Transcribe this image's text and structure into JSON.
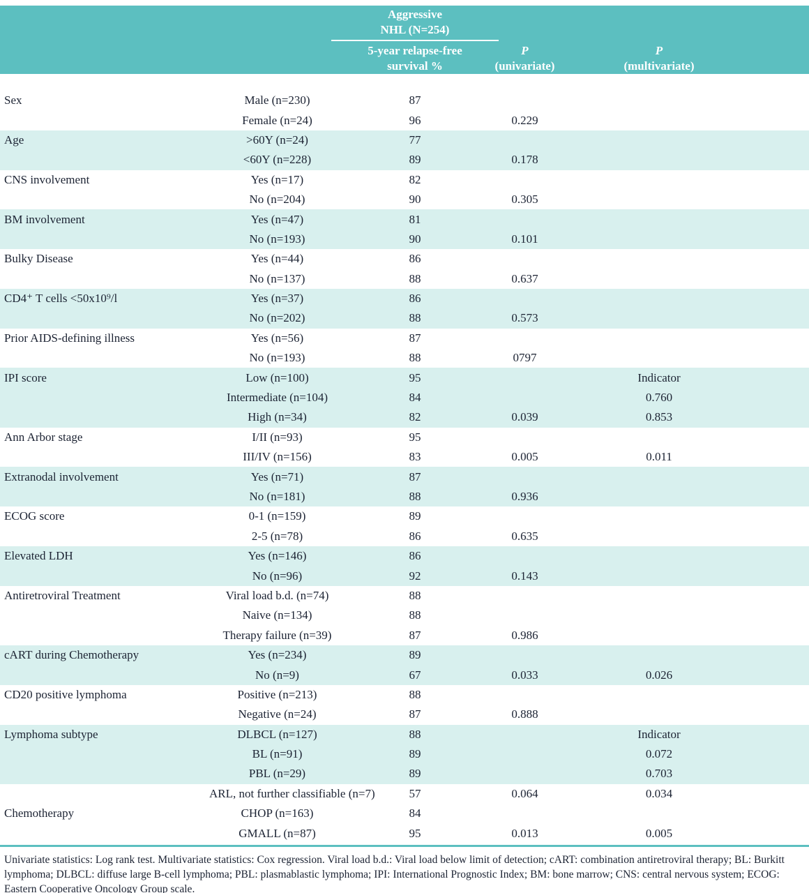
{
  "colors": {
    "header_teal": "#5cbfc0",
    "band_teal": "#d8f0ee",
    "text": "#1c2333"
  },
  "header": {
    "group_line1": "Aggressive",
    "group_line2": "NHL (N=254)",
    "survival_line1": "5-year relapse-free",
    "survival_line2": "survival %",
    "p_uni_line1": "P",
    "p_uni_line2": "(univariate)",
    "p_multi_line1": "P",
    "p_multi_line2": "(multivariate)"
  },
  "bands": [
    {
      "shaded": false,
      "rows": [
        {
          "label": "Sex",
          "category": "Male (n=230)",
          "survival": "87",
          "p_uni": "",
          "p_multi": ""
        },
        {
          "label": "",
          "category": "Female (n=24)",
          "survival": "96",
          "p_uni": "0.229",
          "p_multi": ""
        }
      ]
    },
    {
      "shaded": true,
      "rows": [
        {
          "label": "Age",
          "category": ">60Y (n=24)",
          "survival": "77",
          "p_uni": "",
          "p_multi": ""
        },
        {
          "label": "",
          "category": "<60Y (n=228)",
          "survival": "89",
          "p_uni": "0.178",
          "p_multi": ""
        }
      ]
    },
    {
      "shaded": false,
      "rows": [
        {
          "label": "CNS involvement",
          "category": "Yes (n=17)",
          "survival": "82",
          "p_uni": "",
          "p_multi": ""
        },
        {
          "label": "",
          "category": "No (n=204)",
          "survival": "90",
          "p_uni": "0.305",
          "p_multi": ""
        }
      ]
    },
    {
      "shaded": true,
      "rows": [
        {
          "label": "BM involvement",
          "category": "Yes (n=47)",
          "survival": "81",
          "p_uni": "",
          "p_multi": ""
        },
        {
          "label": "",
          "category": "No (n=193)",
          "survival": "90",
          "p_uni": "0.101",
          "p_multi": ""
        }
      ]
    },
    {
      "shaded": false,
      "rows": [
        {
          "label": "Bulky Disease",
          "category": "Yes (n=44)",
          "survival": "86",
          "p_uni": "",
          "p_multi": ""
        },
        {
          "label": "",
          "category": "No (n=137)",
          "survival": "88",
          "p_uni": "0.637",
          "p_multi": ""
        }
      ]
    },
    {
      "shaded": true,
      "rows": [
        {
          "label": "CD4⁺ T cells <50x10⁹/l",
          "category": "Yes (n=37)",
          "survival": "86",
          "p_uni": "",
          "p_multi": ""
        },
        {
          "label": "",
          "category": "No (n=202)",
          "survival": "88",
          "p_uni": "0.573",
          "p_multi": ""
        }
      ]
    },
    {
      "shaded": false,
      "rows": [
        {
          "label": "Prior AIDS-defining illness",
          "category": "Yes (n=56)",
          "survival": "87",
          "p_uni": "",
          "p_multi": ""
        },
        {
          "label": "",
          "category": "No (n=193)",
          "survival": "88",
          "p_uni": "0797",
          "p_multi": ""
        }
      ]
    },
    {
      "shaded": true,
      "rows": [
        {
          "label": "IPI score",
          "category": "Low (n=100)",
          "survival": "95",
          "p_uni": "",
          "p_multi": "Indicator"
        },
        {
          "label": "",
          "category": "Intermediate (n=104)",
          "survival": "84",
          "p_uni": "",
          "p_multi": "0.760"
        },
        {
          "label": "",
          "category": "High (n=34)",
          "survival": "82",
          "p_uni": "0.039",
          "p_multi": "0.853"
        }
      ]
    },
    {
      "shaded": false,
      "rows": [
        {
          "label": "Ann Arbor stage",
          "category": "I/II (n=93)",
          "survival": "95",
          "p_uni": "",
          "p_multi": ""
        },
        {
          "label": "",
          "category": "III/IV (n=156)",
          "survival": "83",
          "p_uni": "0.005",
          "p_multi": "0.011"
        }
      ]
    },
    {
      "shaded": true,
      "rows": [
        {
          "label": "Extranodal involvement",
          "category": "Yes (n=71)",
          "survival": "87",
          "p_uni": "",
          "p_multi": ""
        },
        {
          "label": "",
          "category": "No (n=181)",
          "survival": "88",
          "p_uni": "0.936",
          "p_multi": ""
        }
      ]
    },
    {
      "shaded": false,
      "rows": [
        {
          "label": "ECOG score",
          "category": "0-1 (n=159)",
          "survival": "89",
          "p_uni": "",
          "p_multi": ""
        },
        {
          "label": "",
          "category": "2-5 (n=78)",
          "survival": "86",
          "p_uni": "0.635",
          "p_multi": ""
        }
      ]
    },
    {
      "shaded": true,
      "rows": [
        {
          "label": "Elevated LDH",
          "category": "Yes (n=146)",
          "survival": "86",
          "p_uni": "",
          "p_multi": ""
        },
        {
          "label": "",
          "category": "No (n=96)",
          "survival": "92",
          "p_uni": "0.143",
          "p_multi": ""
        }
      ]
    },
    {
      "shaded": false,
      "rows": [
        {
          "label": "Antiretroviral Treatment",
          "category": "Viral load b.d. (n=74)",
          "survival": "88",
          "p_uni": "",
          "p_multi": ""
        },
        {
          "label": "",
          "category": "Naive (n=134)",
          "survival": "88",
          "p_uni": "",
          "p_multi": ""
        },
        {
          "label": "",
          "category": "Therapy failure (n=39)",
          "survival": "87",
          "p_uni": "0.986",
          "p_multi": ""
        }
      ]
    },
    {
      "shaded": true,
      "rows": [
        {
          "label": "cART during Chemotherapy",
          "category": "Yes (n=234)",
          "survival": "89",
          "p_uni": "",
          "p_multi": ""
        },
        {
          "label": "",
          "category": "No (n=9)",
          "survival": "67",
          "p_uni": "0.033",
          "p_multi": "0.026"
        }
      ]
    },
    {
      "shaded": false,
      "rows": [
        {
          "label": "CD20 positive lymphoma",
          "category": "Positive (n=213)",
          "survival": "88",
          "p_uni": "",
          "p_multi": ""
        },
        {
          "label": "",
          "category": "Negative (n=24)",
          "survival": "87",
          "p_uni": "0.888",
          "p_multi": ""
        }
      ]
    },
    {
      "shaded": true,
      "rows": [
        {
          "label": "Lymphoma subtype",
          "category": "DLBCL (n=127)",
          "survival": "88",
          "p_uni": "",
          "p_multi": "Indicator"
        },
        {
          "label": "",
          "category": "BL (n=91)",
          "survival": "89",
          "p_uni": "",
          "p_multi": "0.072"
        },
        {
          "label": "",
          "category": "PBL (n=29)",
          "survival": "89",
          "p_uni": "",
          "p_multi": "0.703"
        }
      ]
    },
    {
      "shaded": false,
      "rows": [
        {
          "label": "",
          "category": "ARL, not further classifiable (n=7)",
          "survival": "57",
          "p_uni": "0.064",
          "p_multi": "0.034"
        },
        {
          "label": "Chemotherapy",
          "category": "CHOP (n=163)",
          "survival": "84",
          "p_uni": "",
          "p_multi": ""
        },
        {
          "label": "",
          "category": "GMALL (n=87)",
          "survival": "95",
          "p_uni": "0.013",
          "p_multi": "0.005"
        }
      ]
    }
  ],
  "footnote": "Univariate statistics: Log rank test. Multivariate statistics: Cox regression. Viral load b.d.: Viral load below limit of detection; cART: combination antiretroviral therapy; BL: Burkitt lymphoma; DLBCL: diffuse large B-cell lymphoma; PBL: plasmablastic lymphoma; IPI: International Prognostic Index; BM: bone marrow; CNS: central nervous system; ECOG: Eastern Cooperative Oncology Group scale."
}
